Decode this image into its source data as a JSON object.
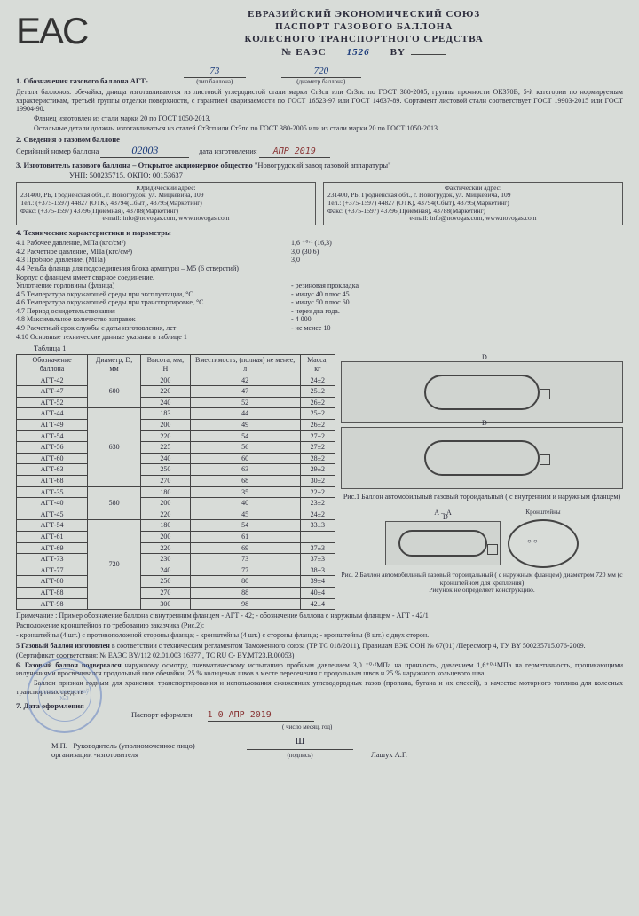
{
  "header": {
    "logo": "EAC",
    "line1": "ЕВРАЗИЙСКИЙ  ЭКОНОМИЧЕСКИЙ  СОЮЗ",
    "line2": "ПАСПОРТ  ГАЗОВОГО  БАЛЛОНА",
    "line3": "КОЛЕСНОГО ТРАНСПОРТНОГО  СРЕДСТВА",
    "reg_prefix": "№ ЕАЭС",
    "reg_no": "1526",
    "reg_suffix": "BY"
  },
  "sec1": {
    "title": "1. Обозначения газового баллона АГТ-",
    "type_val": "73",
    "type_lbl": "(тип баллона)",
    "diam_val": "720",
    "diam_lbl": "(диаметр баллона)",
    "details": "Детали баллонов: обечайка, днища изготавливаются из листовой углеродистой стали марки Ст3сп или Ст3пс по ГОСТ 380-2005, группы прочности ОК370В, 5-й категории по нормируемым характеристикам, третьей группы отделки поверхности, с гарантией свариваемости по ГОСТ 16523-97 или ГОСТ 14637-89. Сортамент листовой стали соответствует ГОСТ 19903-2015 или ГОСТ 19904-90.",
    "details2": "Фланец изготовлен из стали марки 20 по ГОСТ 1050-2013.",
    "details3": "Остальные детали должны изготавливаться из сталей Ст3сп или Ст3пс по ГОСТ 380-2005 или из стали марки 20 по ГОСТ 1050-2013."
  },
  "sec2": {
    "title": "2. Сведения о газовом баллоне",
    "serial_lbl": "Серийный номер баллона",
    "serial_val": "02003",
    "date_lbl": "дата изготовления",
    "date_val": "АПР 2019"
  },
  "sec3": {
    "title": "3. Изготовитель газового баллона – Открытое акционерное общество",
    "maker": "\"Новогрудский завод газовой аппаратуры\"",
    "unp": "УНП: 500235715. ОКПО: 00153637",
    "jur_title": "Юридический адрес:",
    "fact_title": "Фактический адрес:",
    "addr1": "231400, РБ, Гродненская обл., г. Новогрудок, ул. Мицкевича, 109",
    "tel": "Тел.: (+375-1597) 44827 (ОТК), 43794(Сбыт), 43795(Маркетинг)",
    "fax": "Факс: (+375-1597) 43796(Приемная), 43788(Маркетинг)",
    "email": "e-mail: info@novogas.com, www.novogas.com"
  },
  "sec4": {
    "title": "4. Технические характеристики и параметры",
    "rows": [
      {
        "l": "4.1 Рабочее давление, МПа (кгс/см²)",
        "v": "1,6 ⁺⁰·¹ (16,3)"
      },
      {
        "l": "4.2 Расчетное давление, МПа (кгс/см²)",
        "v": "3,0 (30,6)"
      },
      {
        "l": "4.3 Пробное давление, (МПа)",
        "v": "3,0"
      },
      {
        "l": "4.4 Резьба фланца для подсоединения блока арматуры – М5 (6 отверстий)",
        "v": ""
      },
      {
        "l": "     Корпус с фланцем имеет  сварное соединение.",
        "v": ""
      },
      {
        "l": "     Уплотнение горловины (фланца)",
        "v": "-  резиновая прокладка"
      },
      {
        "l": "4.5 Температура окружающей среды при эксплуатации, °С",
        "v": "-  минус 40  плюс 45."
      },
      {
        "l": "4.6 Температура окружающей среды при транспортировке, °С",
        "v": "-  минус 50 плюс 60."
      },
      {
        "l": "4.7 Период освидетельствования",
        "v": "-  через два года."
      },
      {
        "l": "4.8 Максимальное количество заправок",
        "v": "-  4 000"
      },
      {
        "l": "4.9 Расчетный срок службы с даты изготовления, лет",
        "v": "-  не менее 10"
      },
      {
        "l": "4.10 Основные технические данные указаны в таблице 1",
        "v": ""
      }
    ]
  },
  "table": {
    "caption": "Таблица 1",
    "headers": [
      "Обозначение баллона",
      "Диаметр, D, мм",
      "Высота, мм, H",
      "Вместимость, (полная) не менее,  л",
      "Масса, кг"
    ],
    "groups": [
      {
        "d": "600",
        "rows": [
          [
            "АГТ-42",
            "200",
            "42",
            "24±2"
          ],
          [
            "АГТ-47",
            "220",
            "47",
            "25±2"
          ],
          [
            "АГТ-52",
            "240",
            "52",
            "26±2"
          ]
        ]
      },
      {
        "d": "630",
        "rows": [
          [
            "АГТ-44",
            "183",
            "44",
            "25±2"
          ],
          [
            "АГТ-49",
            "200",
            "49",
            "26±2"
          ],
          [
            "АГТ-54",
            "220",
            "54",
            "27±2"
          ],
          [
            "АГТ-56",
            "225",
            "56",
            "27±2"
          ],
          [
            "АГТ-60",
            "240",
            "60",
            "28±2"
          ],
          [
            "АГТ-63",
            "250",
            "63",
            "29±2"
          ],
          [
            "АГТ-68",
            "270",
            "68",
            "30±2"
          ]
        ]
      },
      {
        "d": "580",
        "rows": [
          [
            "АГТ-35",
            "180",
            "35",
            "22±2"
          ],
          [
            "АГТ-40",
            "200",
            "40",
            "23±2"
          ],
          [
            "АГТ-45",
            "220",
            "45",
            "24±2"
          ]
        ]
      },
      {
        "d": "720",
        "rows": [
          [
            "АГТ-54",
            "180",
            "54",
            "33±3"
          ],
          [
            "АГТ-61",
            "200",
            "61",
            ""
          ],
          [
            "АГТ-69",
            "220",
            "69",
            "37±3"
          ],
          [
            "АГТ-73",
            "230",
            "73",
            "37±3"
          ],
          [
            "АГТ-77",
            "240",
            "77",
            "38±3"
          ],
          [
            "АГТ-80",
            "250",
            "80",
            "39±4"
          ],
          [
            "АГТ-88",
            "270",
            "88",
            "40±4"
          ],
          [
            "АГТ-98",
            "300",
            "98",
            "42±4"
          ]
        ]
      }
    ]
  },
  "figs": {
    "fig1": "Рис.1 Баллон автомобильный газовый тороидальный ( с внутренним и наружным фланцем)",
    "fig2": "Рис. 2 Баллон автомобильный газовый тороидальный ( с наружным фланцем) диаметром 720 мм (с кронштейном для крепления)",
    "fig2b": "Рисунок не определяет конструкцию.",
    "aa": "А – А",
    "kron": "Кронштейны"
  },
  "notes": {
    "prim": "Примечание : Пример обозначение баллона с внутренним фланцем - АГТ - 42; - обозначение баллона с наружным фланцем - АГТ - 42/1",
    "rasp": "Расположение кронштейнов по требованию заказчика (Рис.2):",
    "kron": "- кронштейны (4 шт.) с противоположной стороны фланца;  - кронштейны (4 шт.) с стороны фланца;  - кронштейны (8 шт.) с двух сторон.",
    "sec5": "5 Газовый баллон изготовлен в соответствии с техническим регламентом Таможенного союза (ТР ТС 018/2011), Правилам ЕЭК ООН № 67(01) /Пересмотр 4, ТУ BY 500235715.076-2009.",
    "cert": "(Сертификат соответствия: № ЕАЭС BY/112 02.01.003 16377 , ТС RU С- BY.МТ23.В.00053)",
    "sec6": "6. Газовый баллон подвергался наружному осмотру, пневматическому испытанию пробным давлением 3,0 ⁺⁰·²МПа на прочность, давлением 1,6⁺⁰·¹МПа на герметичность, проникающими излучениями просвечивался продольный шов обечайки, 25 % кольцевых швов в месте пересечения с продольным швов и 25 % наружного кольцевого шва.",
    "sec6b": "Баллон признан годным для хранения, транспортирования и использования сжиженных углеводородных газов (пропана, бутана и их смесей), в качестве моторного топлива для колесных транспортных средств"
  },
  "sec7": {
    "title": "7. Дата оформления",
    "issued_lbl": "Паспорт оформлен",
    "issued_val": "1 0 АПР 2019",
    "date_hint": "( число месяц, год)",
    "mp": "М.П.",
    "head": "Руководитель (уполномоченное лицо) организации -изготовителя",
    "sig_hint": "(подпись)",
    "name": "Лашук А.Г."
  },
  "stamp": {
    "outer": "НАВАГРУДАК",
    "inner": "аддзел дакументаў №3"
  },
  "colors": {
    "bg": "#d8dcd8",
    "ink": "#2a2a3a",
    "hand": "#1a3a7a",
    "stamp": "#5a7ac0",
    "datestamp": "#883333"
  }
}
